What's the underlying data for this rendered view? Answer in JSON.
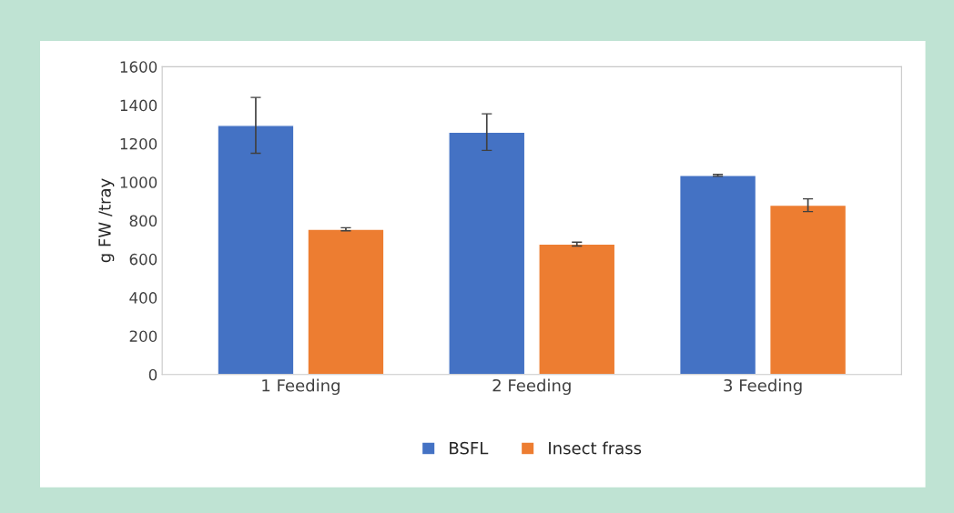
{
  "chart_data": {
    "type": "bar",
    "ylabel": "g FW /tray",
    "categories": [
      "1 Feeding",
      "2 Feeding",
      "3 Feeding"
    ],
    "series": [
      {
        "name": "BSFL",
        "color": "#4472c4",
        "values": [
          1295,
          1260,
          1035
        ],
        "errors": [
          145,
          95,
          5
        ]
      },
      {
        "name": "Insect frass",
        "color": "#ed7d31",
        "values": [
          755,
          678,
          880
        ],
        "errors": [
          8,
          10,
          33
        ]
      }
    ],
    "ylim": [
      0,
      1600
    ],
    "yticks": [
      0,
      200,
      400,
      600,
      800,
      1000,
      1200,
      1400,
      1600
    ],
    "grid": false,
    "legend": "bottom"
  }
}
